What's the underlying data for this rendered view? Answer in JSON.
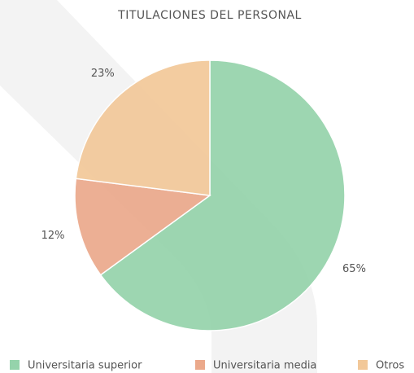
{
  "chart_data": {
    "type": "pie",
    "title": "TITULACIONES DEL PERSONAL",
    "categories": [
      "Universitaria superior",
      "Universitaria media",
      "Otros"
    ],
    "values": [
      65,
      12,
      23
    ],
    "value_labels": [
      "65%",
      "12%",
      "23%"
    ],
    "colors": [
      "#95d3ab",
      "#eba98b",
      "#f2c899"
    ],
    "legend": "bottom"
  }
}
